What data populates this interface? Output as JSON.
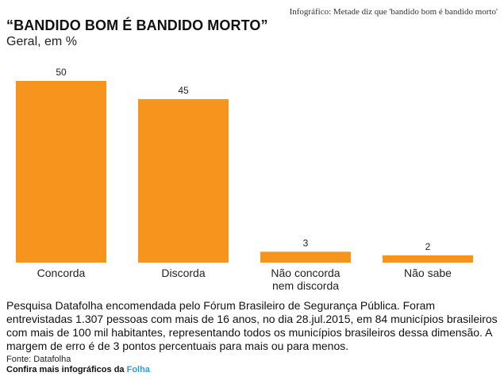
{
  "header": {
    "note": "Infográfico: Metade diz que 'bandido bom é bandido morto'"
  },
  "chart_data": {
    "type": "bar",
    "title": "“BANDIDO BOM É BANDIDO MORTO”",
    "subtitle": "Geral, em %",
    "categories": [
      "Concorda",
      "Discorda",
      "Não concorda nem discorda",
      "Não sabe"
    ],
    "category_lines": [
      [
        "Concorda"
      ],
      [
        "Discorda"
      ],
      [
        "Não concorda",
        "nem discorda"
      ],
      [
        "Não sabe"
      ]
    ],
    "values": [
      50,
      45,
      3,
      2
    ],
    "ylim": [
      0,
      50
    ],
    "bar_color": "#f7941d",
    "grid": false
  },
  "footer": {
    "note": "Pesquisa Datafolha encomendada pelo Fórum Brasileiro de Segurança Pública. Foram entrevistadas 1.307 pessoas com mais de 16 anos, no dia 28.jul.2015, em 84 municípios brasileiros com mais de 100 mil habitantes, representando todos os municípios brasileiros dessa dimensão. A margem de erro é de 3 pontos percentuais para mais ou para menos.",
    "source": "Fonte: Datafolha",
    "credit_prefix": "Confira mais infográficos da",
    "credit_brand": "Folha"
  }
}
